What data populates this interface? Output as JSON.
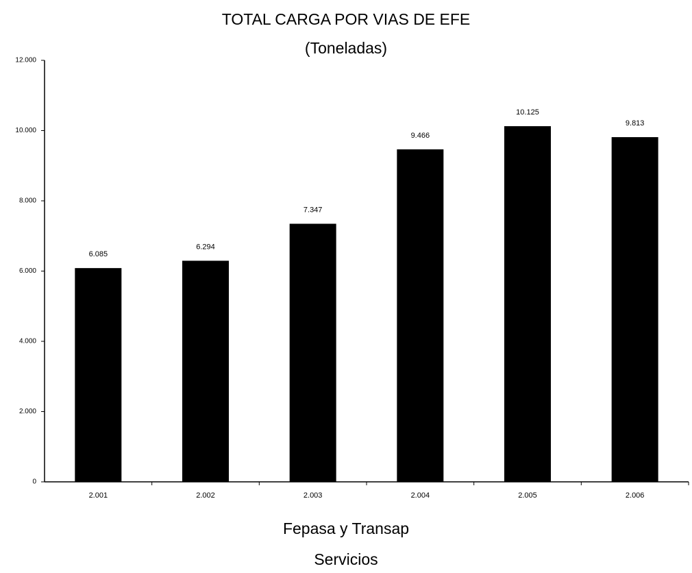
{
  "chart_data": {
    "type": "bar",
    "title": "TOTAL CARGA  POR VIAS DE EFE",
    "subtitle": "(Toneladas)",
    "xlabel": "Fepasa y Transap",
    "note": "Servicios",
    "categories": [
      "2.001",
      "2.002",
      "2.003",
      "2.004",
      "2.005",
      "2.006"
    ],
    "values": [
      6085,
      6294,
      7347,
      9466,
      10125,
      9813
    ],
    "value_labels": [
      "6.085",
      "6.294",
      "7.347",
      "9.466",
      "10.125",
      "9.813"
    ],
    "color": "#000000",
    "ylim": [
      0,
      12000
    ],
    "yticks": [
      0,
      {
        "value": 2000,
        "label": "2.000"
      },
      {
        "value": 4000,
        "label": "4.000"
      },
      {
        "value": 6000,
        "label": "6.000"
      },
      {
        "value": 8000,
        "label": "8.000"
      },
      {
        "value": 10000,
        "label": "10.000"
      },
      {
        "value": 12000,
        "label": "12.000"
      }
    ],
    "grid": false
  }
}
